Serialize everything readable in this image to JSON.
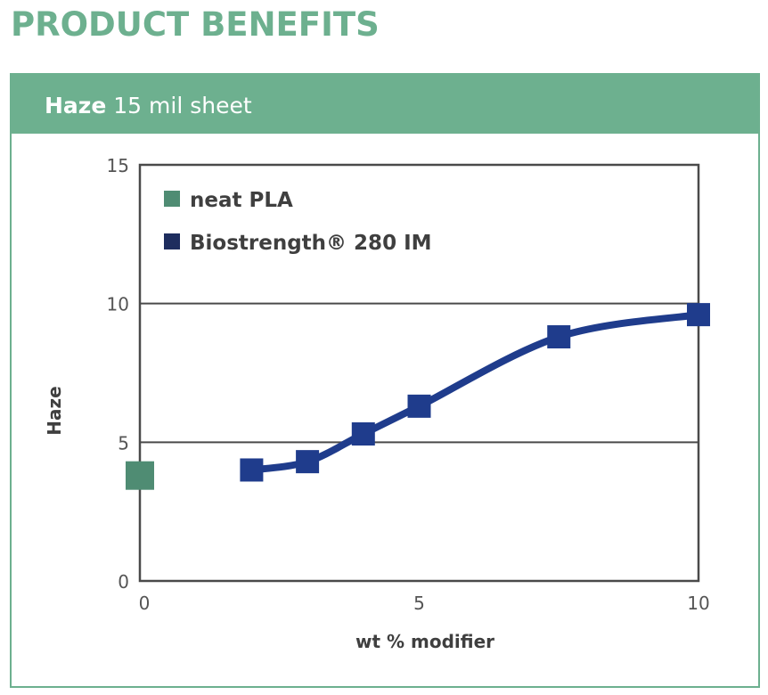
{
  "page": {
    "title": "PRODUCT BENEFITS"
  },
  "panel": {
    "title_bold": "Haze",
    "title_rest": " 15 mil sheet"
  },
  "colors": {
    "accent": "#6db08f",
    "neat_pla": "#4f8c73",
    "biostrength": "#1f3c8c",
    "legend_biostrength": "#1e2d5e"
  },
  "chart_data": {
    "type": "scatter",
    "title": "",
    "xlabel": "wt % modifier",
    "ylabel": "Haze",
    "xlim": [
      0,
      10
    ],
    "ylim": [
      0,
      15
    ],
    "xticks": [
      "0",
      "5",
      "10"
    ],
    "yticks": [
      "0",
      "5",
      "10",
      "15"
    ],
    "grid": "horizontal",
    "legend_position": "top-left",
    "series": [
      {
        "name": "neat PLA",
        "marker": "square",
        "line": false,
        "x": [
          0
        ],
        "y": [
          3.8
        ]
      },
      {
        "name": "Biostrength® 280 IM",
        "marker": "square",
        "line": true,
        "x": [
          2,
          3,
          4,
          5,
          7.5,
          10
        ],
        "y": [
          4.0,
          4.3,
          5.3,
          6.3,
          8.8,
          9.6
        ]
      }
    ]
  }
}
